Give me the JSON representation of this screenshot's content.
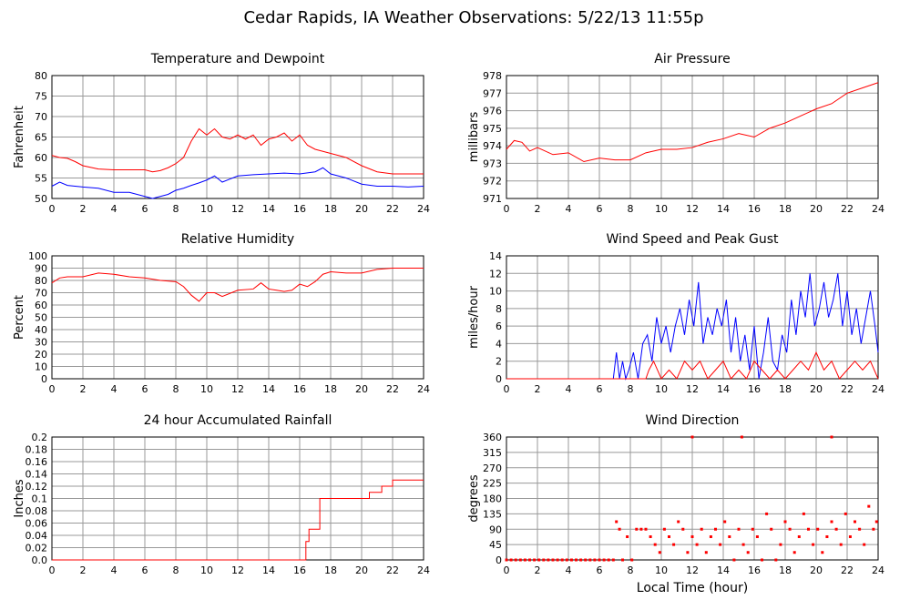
{
  "title": "Cedar Rapids, IA Weather Observations: 5/22/13 11:55p",
  "xlabel": "Local Time (hour)",
  "colors": {
    "red": "#ff0000",
    "blue": "#0000ff",
    "grid": "#999999",
    "frame": "#000000"
  },
  "chart_data": [
    {
      "id": "temp",
      "type": "line",
      "title": "Temperature and Dewpoint",
      "ylabel": "Fahrenheit",
      "xlim": [
        0,
        24
      ],
      "ylim": [
        50,
        80
      ],
      "xticks": [
        0,
        2,
        4,
        6,
        8,
        10,
        12,
        14,
        16,
        18,
        20,
        22,
        24
      ],
      "yticks": [
        50,
        55,
        60,
        65,
        70,
        75,
        80
      ],
      "grid": true,
      "series": [
        {
          "color": "#ff0000",
          "x": [
            0,
            0.5,
            1,
            1.5,
            2,
            3,
            4,
            5,
            6,
            6.5,
            7,
            7.5,
            8,
            8.5,
            9,
            9.5,
            10,
            10.5,
            11,
            11.5,
            12,
            12.5,
            13,
            13.5,
            14,
            14.5,
            15,
            15.5,
            16,
            16.5,
            17,
            17.5,
            18,
            19,
            20,
            21,
            22,
            23,
            24
          ],
          "y": [
            60.5,
            60,
            59.8,
            59,
            58,
            57.2,
            57,
            57,
            57,
            56.5,
            56.8,
            57.5,
            58.5,
            60,
            64,
            67,
            65.5,
            67,
            65,
            64.5,
            65.5,
            64.5,
            65.5,
            63,
            64.5,
            65,
            66,
            64,
            65.5,
            63,
            62,
            61.5,
            61,
            60,
            58,
            56.5,
            56,
            56,
            56
          ]
        },
        {
          "color": "#0000ff",
          "x": [
            0,
            0.5,
            1,
            2,
            3,
            4,
            5,
            6,
            6.5,
            7,
            7.5,
            8,
            8.5,
            9,
            9.5,
            10,
            10.5,
            11,
            12,
            13,
            14,
            15,
            16,
            17,
            17.5,
            18,
            19,
            20,
            21,
            22,
            23,
            24
          ],
          "y": [
            53,
            54,
            53.2,
            52.8,
            52.5,
            51.5,
            51.5,
            50.5,
            50,
            50.5,
            51,
            52,
            52.5,
            53.2,
            53.8,
            54.5,
            55.5,
            54,
            55.5,
            55.8,
            56,
            56.2,
            56,
            56.5,
            57.5,
            56,
            55,
            53.5,
            53,
            53,
            52.8,
            53
          ]
        }
      ]
    },
    {
      "id": "pressure",
      "type": "line",
      "title": "Air Pressure",
      "ylabel": "millibars",
      "xlim": [
        0,
        24
      ],
      "ylim": [
        971,
        978
      ],
      "xticks": [
        0,
        2,
        4,
        6,
        8,
        10,
        12,
        14,
        16,
        18,
        20,
        22,
        24
      ],
      "yticks": [
        971,
        972,
        973,
        974,
        975,
        976,
        977,
        978
      ],
      "grid": true,
      "series": [
        {
          "color": "#ff0000",
          "x": [
            0,
            0.5,
            1,
            1.5,
            2,
            3,
            4,
            5,
            6,
            7,
            8,
            9,
            10,
            11,
            12,
            13,
            14,
            15,
            16,
            17,
            18,
            19,
            20,
            21,
            22,
            23,
            24
          ],
          "y": [
            973.8,
            974.3,
            974.2,
            973.7,
            973.9,
            973.5,
            973.6,
            973.1,
            973.3,
            973.2,
            973.2,
            973.6,
            973.8,
            973.8,
            973.9,
            974.2,
            974.4,
            974.7,
            974.5,
            975,
            975.3,
            975.7,
            976.1,
            976.4,
            977,
            977.3,
            977.6
          ]
        }
      ]
    },
    {
      "id": "rh",
      "type": "line",
      "title": "Relative Humidity",
      "ylabel": "Percent",
      "xlim": [
        0,
        24
      ],
      "ylim": [
        0,
        100
      ],
      "xticks": [
        0,
        2,
        4,
        6,
        8,
        10,
        12,
        14,
        16,
        18,
        20,
        22,
        24
      ],
      "yticks": [
        0,
        10,
        20,
        30,
        40,
        50,
        60,
        70,
        80,
        90,
        100
      ],
      "grid": true,
      "series": [
        {
          "color": "#ff0000",
          "x": [
            0,
            0.5,
            1,
            2,
            3,
            4,
            5,
            6,
            7,
            8,
            8.5,
            9,
            9.5,
            10,
            10.5,
            11,
            12,
            13,
            13.5,
            14,
            14.5,
            15,
            15.5,
            16,
            16.5,
            17,
            17.5,
            18,
            19,
            20,
            21,
            22,
            23,
            24
          ],
          "y": [
            78,
            82,
            83,
            83,
            86,
            85,
            83,
            82,
            80,
            79,
            75,
            68,
            63,
            70,
            70,
            67,
            72,
            73,
            78,
            73,
            72,
            71,
            72,
            77,
            75,
            79,
            85,
            87,
            86,
            86,
            89,
            90,
            90,
            90
          ]
        }
      ]
    },
    {
      "id": "wind",
      "type": "line",
      "title": "Wind Speed and Peak Gust",
      "ylabel": "miles/hour",
      "xlim": [
        0,
        24
      ],
      "ylim": [
        0,
        14
      ],
      "xticks": [
        0,
        2,
        4,
        6,
        8,
        10,
        12,
        14,
        16,
        18,
        20,
        22,
        24
      ],
      "yticks": [
        0,
        2,
        4,
        6,
        8,
        10,
        12,
        14
      ],
      "grid": true,
      "series": [
        {
          "color": "#0000ff",
          "x": [
            0,
            6.9,
            7.1,
            7.3,
            7.5,
            7.7,
            7.9,
            8.2,
            8.5,
            8.8,
            9.1,
            9.4,
            9.7,
            10,
            10.3,
            10.6,
            10.9,
            11.2,
            11.5,
            11.8,
            12.1,
            12.4,
            12.7,
            13,
            13.3,
            13.6,
            13.9,
            14.2,
            14.5,
            14.8,
            15.1,
            15.4,
            15.7,
            16,
            16.3,
            16.6,
            16.9,
            17.2,
            17.5,
            17.8,
            18.1,
            18.4,
            18.7,
            19,
            19.3,
            19.6,
            19.9,
            20.2,
            20.5,
            20.8,
            21.1,
            21.4,
            21.7,
            22,
            22.3,
            22.6,
            22.9,
            23.2,
            23.5,
            23.8,
            24
          ],
          "y": [
            0,
            0,
            3,
            0,
            2,
            0,
            1,
            3,
            0,
            4,
            5,
            2,
            7,
            4,
            6,
            3,
            6,
            8,
            5,
            9,
            6,
            11,
            4,
            7,
            5,
            8,
            6,
            9,
            3,
            7,
            2,
            5,
            1,
            6,
            0,
            3,
            7,
            2,
            1,
            5,
            3,
            9,
            5,
            10,
            7,
            12,
            6,
            8,
            11,
            7,
            9,
            12,
            6,
            10,
            5,
            8,
            4,
            7,
            10,
            6,
            3
          ]
        },
        {
          "color": "#ff0000",
          "x": [
            0,
            9,
            9.2,
            9.5,
            10,
            10.5,
            11,
            11.5,
            12,
            12.5,
            13,
            13.5,
            14,
            14.5,
            15,
            15.5,
            16,
            16.5,
            17,
            17.5,
            18,
            18.5,
            19,
            19.5,
            20,
            20.5,
            21,
            21.5,
            22,
            22.5,
            23,
            23.5,
            24
          ],
          "y": [
            0,
            0,
            1,
            2,
            0,
            1,
            0,
            2,
            1,
            2,
            0,
            1,
            2,
            0,
            1,
            0,
            2,
            1,
            0,
            1,
            0,
            1,
            2,
            1,
            3,
            1,
            2,
            0,
            1,
            2,
            1,
            2,
            0
          ]
        }
      ]
    },
    {
      "id": "rain",
      "type": "line",
      "title": "24 hour Accumulated Rainfall",
      "ylabel": "Inches",
      "xlim": [
        0,
        24
      ],
      "ylim": [
        0,
        0.2
      ],
      "xticks": [
        0,
        2,
        4,
        6,
        8,
        10,
        12,
        14,
        16,
        18,
        20,
        22,
        24
      ],
      "yticks": [
        0,
        0.02,
        0.04,
        0.06,
        0.08,
        0.1,
        0.12,
        0.14,
        0.16,
        0.18,
        0.2
      ],
      "ytick_labels": [
        "0.0",
        "0.02",
        "0.04",
        "0.06",
        "0.08",
        "0.1",
        "0.12",
        "0.14",
        "0.16",
        "0.18",
        "0.2"
      ],
      "grid": true,
      "series": [
        {
          "color": "#ff0000",
          "step": true,
          "x": [
            0,
            16.2,
            16.4,
            16.6,
            17.1,
            17.3,
            17.6,
            20.5,
            21.3,
            22,
            24
          ],
          "y": [
            0,
            0,
            0.03,
            0.05,
            0.05,
            0.1,
            0.1,
            0.11,
            0.12,
            0.13,
            0.13
          ]
        }
      ]
    },
    {
      "id": "winddir",
      "type": "scatter",
      "title": "Wind Direction",
      "ylabel": "degrees",
      "xlabel": "Local Time (hour)",
      "xlim": [
        0,
        24
      ],
      "ylim": [
        0,
        360
      ],
      "xticks": [
        0,
        2,
        4,
        6,
        8,
        10,
        12,
        14,
        16,
        18,
        20,
        22,
        24
      ],
      "yticks": [
        0,
        45,
        90,
        135,
        180,
        225,
        270,
        315,
        360
      ],
      "grid": true,
      "series": [
        {
          "color": "#ff0000",
          "x": [
            0,
            0.3,
            0.6,
            0.9,
            1.2,
            1.5,
            1.8,
            2.1,
            2.4,
            2.7,
            3,
            3.3,
            3.6,
            3.9,
            4.2,
            4.5,
            4.8,
            5.1,
            5.4,
            5.7,
            6,
            6.3,
            6.6,
            6.9,
            7.1,
            7.3,
            7.5,
            7.8,
            8.1,
            8.4,
            8.7,
            9,
            9.3,
            9.6,
            9.9,
            10.2,
            10.5,
            10.8,
            11.1,
            11.4,
            11.7,
            12,
            12.3,
            12.6,
            12.9,
            13.2,
            13.5,
            13.8,
            14.1,
            14.4,
            14.7,
            15,
            15.3,
            15.6,
            15.9,
            16.2,
            16.5,
            16.8,
            17.1,
            17.4,
            17.7,
            18,
            18.3,
            18.6,
            18.9,
            19.2,
            19.5,
            19.8,
            20.1,
            20.4,
            20.7,
            21,
            21.3,
            21.6,
            21.9,
            22.2,
            22.5,
            22.8,
            23.1,
            23.4,
            23.7,
            23.9,
            12,
            15.2,
            21
          ],
          "y": [
            0,
            0,
            0,
            0,
            0,
            0,
            0,
            0,
            0,
            0,
            0,
            0,
            0,
            0,
            0,
            0,
            0,
            0,
            0,
            0,
            0,
            0,
            0,
            0,
            112,
            90,
            0,
            68,
            0,
            90,
            90,
            90,
            68,
            45,
            22,
            90,
            68,
            45,
            112,
            90,
            22,
            68,
            45,
            90,
            22,
            68,
            90,
            45,
            112,
            68,
            0,
            90,
            45,
            22,
            90,
            68,
            0,
            135,
            90,
            0,
            45,
            112,
            90,
            22,
            68,
            135,
            90,
            45,
            90,
            22,
            68,
            112,
            90,
            45,
            135,
            68,
            112,
            90,
            45,
            157,
            90,
            112,
            360,
            360,
            360
          ]
        }
      ]
    }
  ]
}
